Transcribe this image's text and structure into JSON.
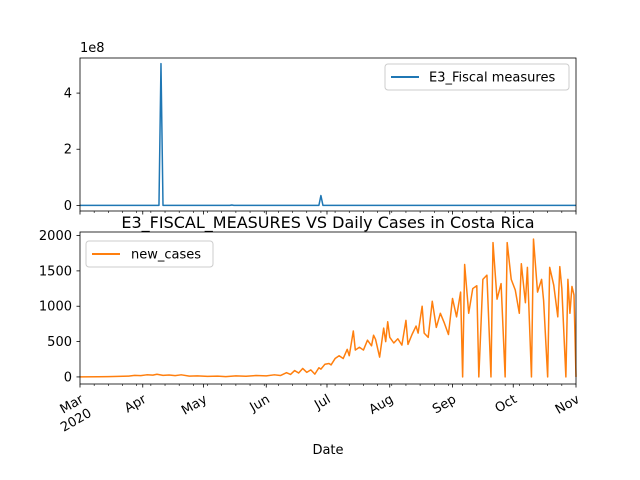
{
  "chart_data": [
    {
      "type": "line",
      "title": "",
      "xlabel": "",
      "ylabel": "",
      "y_multiplier_label": "1e8",
      "ylim": [
        -20000000,
        525000000
      ],
      "yticks": [
        {
          "value": 0,
          "label": "0"
        },
        {
          "value": 200000000,
          "label": "2"
        },
        {
          "value": 400000000,
          "label": "4"
        }
      ],
      "legend": "top-right",
      "series": [
        {
          "name": "E3_Fiscal measures",
          "color": "#1f77b4",
          "points": [
            [
              "2020-03-01",
              0
            ],
            [
              "2020-04-09",
              0
            ],
            [
              "2020-04-10",
              505000000
            ],
            [
              "2020-04-11",
              0
            ],
            [
              "2020-05-14",
              0
            ],
            [
              "2020-05-15",
              1500000
            ],
            [
              "2020-05-16",
              0
            ],
            [
              "2020-06-27",
              0
            ],
            [
              "2020-06-28",
              35000000
            ],
            [
              "2020-06-29",
              0
            ],
            [
              "2020-11-01",
              0
            ]
          ]
        }
      ]
    },
    {
      "type": "line",
      "title": "E3_FISCAL_MEASURES VS Daily Cases in Costa Rica",
      "xlabel": "Date",
      "ylabel": "",
      "ylim": [
        -100,
        2050
      ],
      "yticks": [
        {
          "value": 0,
          "label": "0"
        },
        {
          "value": 500,
          "label": "500"
        },
        {
          "value": 1000,
          "label": "1000"
        },
        {
          "value": 1500,
          "label": "1500"
        },
        {
          "value": 2000,
          "label": "2000"
        }
      ],
      "xticks": [
        {
          "date": "2020-03-01",
          "label": "Mar",
          "sublabel": "2020"
        },
        {
          "date": "2020-04-01",
          "label": "Apr"
        },
        {
          "date": "2020-05-01",
          "label": "May"
        },
        {
          "date": "2020-06-01",
          "label": "Jun"
        },
        {
          "date": "2020-07-01",
          "label": "Jul"
        },
        {
          "date": "2020-08-01",
          "label": "Aug"
        },
        {
          "date": "2020-09-01",
          "label": "Sep"
        },
        {
          "date": "2020-10-01",
          "label": "Oct"
        },
        {
          "date": "2020-11-01",
          "label": "Nov"
        }
      ],
      "xlim": [
        "2020-03-01",
        "2020-11-01"
      ],
      "legend": "top-left",
      "series": [
        {
          "name": "new_cases",
          "color": "#ff7f0e",
          "points": [
            [
              "2020-03-01",
              0
            ],
            [
              "2020-03-10",
              2
            ],
            [
              "2020-03-15",
              5
            ],
            [
              "2020-03-20",
              8
            ],
            [
              "2020-03-25",
              12
            ],
            [
              "2020-03-28",
              22
            ],
            [
              "2020-03-31",
              18
            ],
            [
              "2020-04-03",
              30
            ],
            [
              "2020-04-06",
              25
            ],
            [
              "2020-04-08",
              38
            ],
            [
              "2020-04-11",
              22
            ],
            [
              "2020-04-14",
              28
            ],
            [
              "2020-04-17",
              18
            ],
            [
              "2020-04-20",
              30
            ],
            [
              "2020-04-24",
              12
            ],
            [
              "2020-04-28",
              15
            ],
            [
              "2020-05-03",
              8
            ],
            [
              "2020-05-08",
              12
            ],
            [
              "2020-05-12",
              5
            ],
            [
              "2020-05-17",
              15
            ],
            [
              "2020-05-22",
              10
            ],
            [
              "2020-05-27",
              20
            ],
            [
              "2020-06-01",
              15
            ],
            [
              "2020-06-05",
              30
            ],
            [
              "2020-06-08",
              20
            ],
            [
              "2020-06-11",
              60
            ],
            [
              "2020-06-13",
              35
            ],
            [
              "2020-06-15",
              90
            ],
            [
              "2020-06-17",
              55
            ],
            [
              "2020-06-19",
              120
            ],
            [
              "2020-06-21",
              65
            ],
            [
              "2020-06-23",
              100
            ],
            [
              "2020-06-25",
              40
            ],
            [
              "2020-06-27",
              130
            ],
            [
              "2020-06-28",
              110
            ],
            [
              "2020-06-30",
              180
            ],
            [
              "2020-07-02",
              190
            ],
            [
              "2020-07-03",
              170
            ],
            [
              "2020-07-05",
              260
            ],
            [
              "2020-07-07",
              300
            ],
            [
              "2020-07-09",
              260
            ],
            [
              "2020-07-11",
              390
            ],
            [
              "2020-07-12",
              300
            ],
            [
              "2020-07-14",
              650
            ],
            [
              "2020-07-15",
              380
            ],
            [
              "2020-07-17",
              420
            ],
            [
              "2020-07-19",
              380
            ],
            [
              "2020-07-21",
              520
            ],
            [
              "2020-07-23",
              440
            ],
            [
              "2020-07-24",
              590
            ],
            [
              "2020-07-25",
              530
            ],
            [
              "2020-07-27",
              280
            ],
            [
              "2020-07-29",
              690
            ],
            [
              "2020-07-30",
              500
            ],
            [
              "2020-07-31",
              780
            ],
            [
              "2020-08-01",
              560
            ],
            [
              "2020-08-03",
              480
            ],
            [
              "2020-08-05",
              540
            ],
            [
              "2020-08-07",
              450
            ],
            [
              "2020-08-09",
              800
            ],
            [
              "2020-08-10",
              460
            ],
            [
              "2020-08-12",
              600
            ],
            [
              "2020-08-14",
              720
            ],
            [
              "2020-08-15",
              620
            ],
            [
              "2020-08-17",
              1000
            ],
            [
              "2020-08-18",
              620
            ],
            [
              "2020-08-20",
              560
            ],
            [
              "2020-08-22",
              1070
            ],
            [
              "2020-08-24",
              700
            ],
            [
              "2020-08-26",
              900
            ],
            [
              "2020-08-28",
              760
            ],
            [
              "2020-08-30",
              600
            ],
            [
              "2020-09-01",
              1110
            ],
            [
              "2020-09-03",
              850
            ],
            [
              "2020-09-05",
              1200
            ],
            [
              "2020-09-06",
              0
            ],
            [
              "2020-09-07",
              1590
            ],
            [
              "2020-09-09",
              900
            ],
            [
              "2020-09-11",
              1250
            ],
            [
              "2020-09-13",
              1290
            ],
            [
              "2020-09-14",
              0
            ],
            [
              "2020-09-16",
              1380
            ],
            [
              "2020-09-18",
              1440
            ],
            [
              "2020-09-20",
              0
            ],
            [
              "2020-09-21",
              1900
            ],
            [
              "2020-09-23",
              1100
            ],
            [
              "2020-09-25",
              1320
            ],
            [
              "2020-09-27",
              0
            ],
            [
              "2020-09-28",
              1900
            ],
            [
              "2020-09-30",
              1380
            ],
            [
              "2020-10-02",
              1230
            ],
            [
              "2020-10-04",
              900
            ],
            [
              "2020-10-05",
              1600
            ],
            [
              "2020-10-07",
              1050
            ],
            [
              "2020-10-08",
              1550
            ],
            [
              "2020-10-10",
              0
            ],
            [
              "2020-10-11",
              1950
            ],
            [
              "2020-10-13",
              1200
            ],
            [
              "2020-10-15",
              1380
            ],
            [
              "2020-10-16",
              1080
            ],
            [
              "2020-10-18",
              0
            ],
            [
              "2020-10-19",
              1550
            ],
            [
              "2020-10-21",
              1300
            ],
            [
              "2020-10-23",
              850
            ],
            [
              "2020-10-24",
              1560
            ],
            [
              "2020-10-25",
              1250
            ],
            [
              "2020-10-27",
              0
            ],
            [
              "2020-10-28",
              1380
            ],
            [
              "2020-10-29",
              900
            ],
            [
              "2020-10-30",
              1280
            ],
            [
              "2020-10-31",
              1160
            ],
            [
              "2020-11-01",
              0
            ]
          ]
        }
      ]
    }
  ]
}
